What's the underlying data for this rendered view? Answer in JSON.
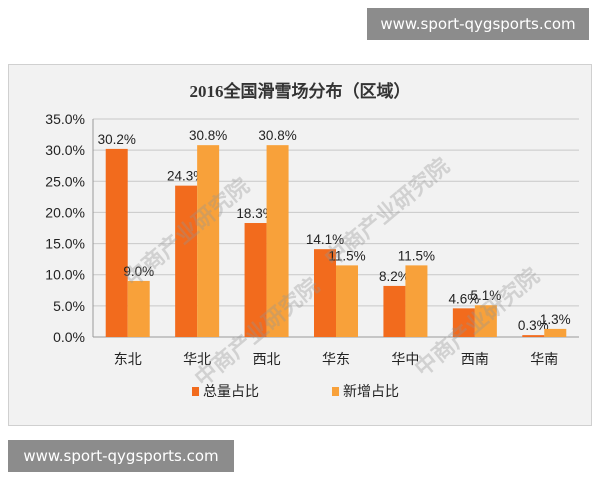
{
  "watermark_top": "www.sport-qygsports.com",
  "watermark_bottom": "www.sport-qygsports.com",
  "stamp_text": "中商产业研究院",
  "chart_data": {
    "type": "bar",
    "title": "2016全国滑雪场分布（区域）",
    "categories": [
      "东北",
      "华北",
      "西北",
      "华东",
      "华中",
      "西南",
      "华南"
    ],
    "series": [
      {
        "name": "总量占比",
        "color": "#f26b1d",
        "values": [
          30.2,
          24.3,
          18.3,
          14.1,
          8.2,
          4.6,
          0.3
        ],
        "labels": [
          "30.2%",
          "24.3%",
          "18.3%",
          "14.1%",
          "8.2%",
          "4.6%",
          "0.3%"
        ]
      },
      {
        "name": "新增占比",
        "color": "#f8a13a",
        "values": [
          9.0,
          30.8,
          30.8,
          11.5,
          11.5,
          5.1,
          1.3
        ],
        "labels": [
          "9.0%",
          "30.8%",
          "30.8%",
          "11.5%",
          "11.5%",
          "5.1%",
          "1.3%"
        ]
      }
    ],
    "ylim": [
      0,
      35
    ],
    "yticks": [
      "0.0%",
      "5.0%",
      "10.0%",
      "15.0%",
      "20.0%",
      "25.0%",
      "30.0%",
      "35.0%"
    ],
    "grid": true,
    "legend_position": "bottom"
  }
}
